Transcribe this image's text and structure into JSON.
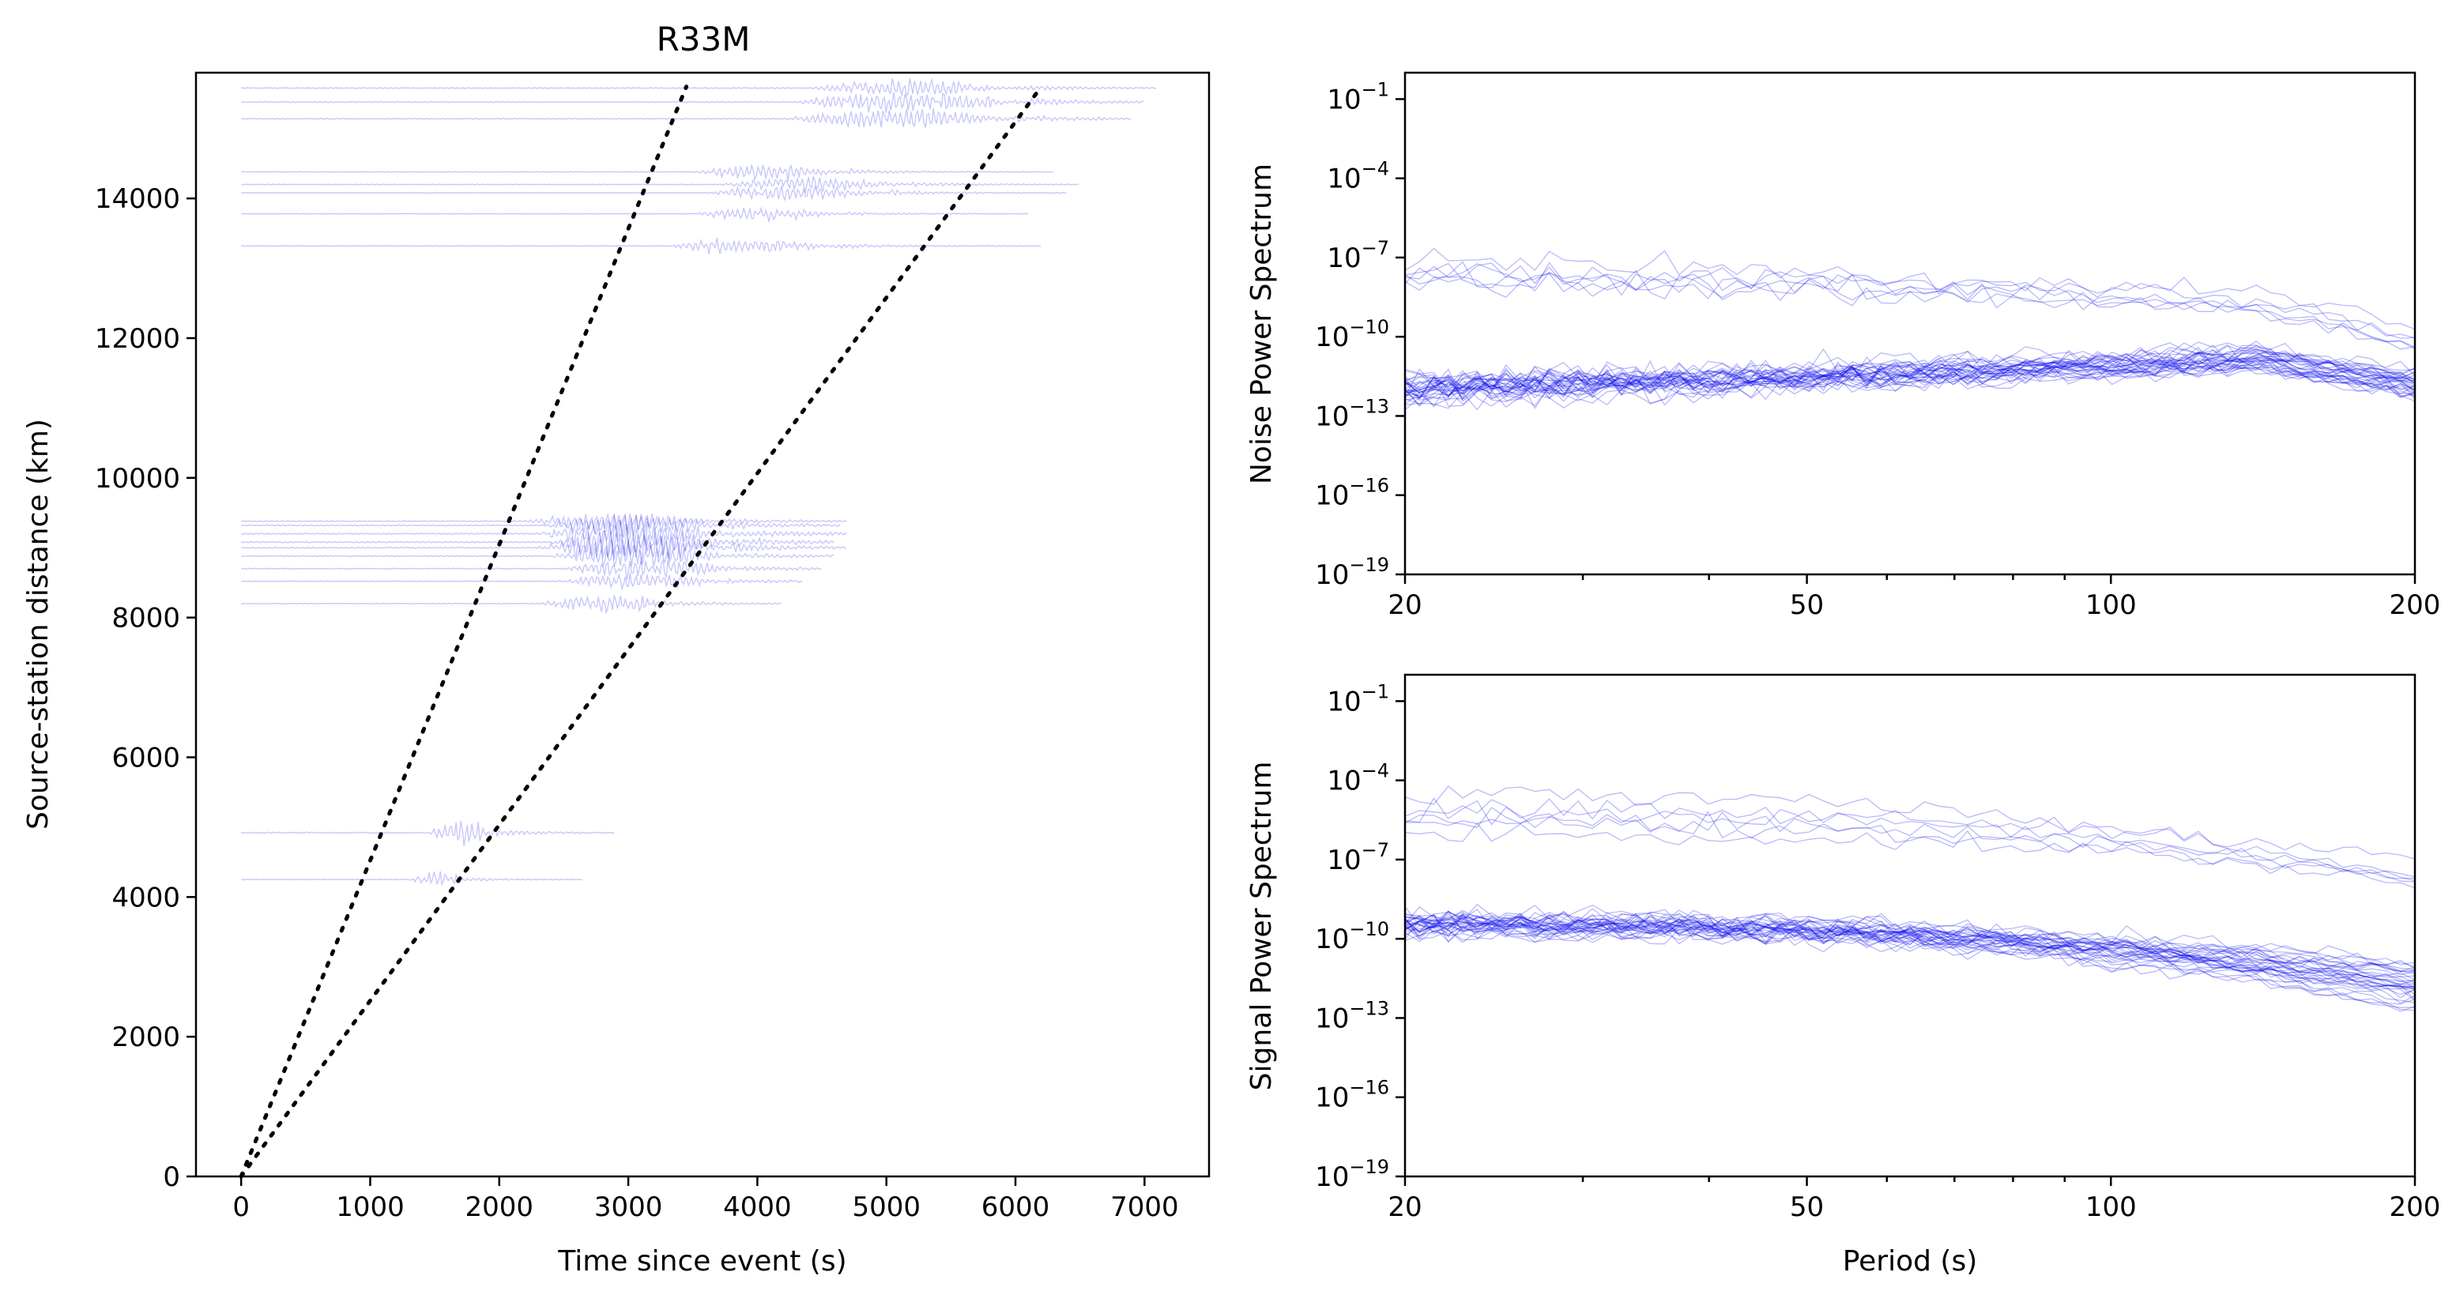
{
  "chart_data": [
    {
      "id": "record-section",
      "type": "line",
      "title": "R33M",
      "xlabel": "Time since event (s)",
      "ylabel": "Source-station distance (km)",
      "xlim": [
        -350,
        7500
      ],
      "ylim": [
        0,
        15800
      ],
      "xticks": [
        0,
        1000,
        2000,
        3000,
        4000,
        5000,
        6000,
        7000
      ],
      "yticks": [
        0,
        2000,
        4000,
        6000,
        8000,
        10000,
        12000,
        14000
      ],
      "grid": false,
      "trace_color": "#0000ee",
      "traces": [
        {
          "distance": 4250,
          "t_start": 0,
          "t_end": 2650,
          "arrival": 1300,
          "duration": 500,
          "amp": 120
        },
        {
          "distance": 4920,
          "t_start": 0,
          "t_end": 2900,
          "arrival": 1450,
          "duration": 600,
          "amp": 230
        },
        {
          "distance": 8200,
          "t_start": 0,
          "t_end": 4200,
          "arrival": 2300,
          "duration": 1100,
          "amp": 160
        },
        {
          "distance": 8520,
          "t_start": 0,
          "t_end": 4350,
          "arrival": 2450,
          "duration": 1300,
          "amp": 150
        },
        {
          "distance": 8700,
          "t_start": 0,
          "t_end": 4500,
          "arrival": 2500,
          "duration": 1400,
          "amp": 180
        },
        {
          "distance": 8880,
          "t_start": 0,
          "t_end": 4600,
          "arrival": 2400,
          "duration": 1400,
          "amp": 220
        },
        {
          "distance": 9000,
          "t_start": 0,
          "t_end": 4700,
          "arrival": 2300,
          "duration": 1500,
          "amp": 260
        },
        {
          "distance": 9080,
          "t_start": 0,
          "t_end": 4600,
          "arrival": 2400,
          "duration": 1400,
          "amp": 280
        },
        {
          "distance": 9200,
          "t_start": 0,
          "t_end": 4700,
          "arrival": 2300,
          "duration": 1500,
          "amp": 260
        },
        {
          "distance": 9320,
          "t_start": 0,
          "t_end": 4650,
          "arrival": 2350,
          "duration": 1400,
          "amp": 220
        },
        {
          "distance": 9380,
          "t_start": 0,
          "t_end": 4700,
          "arrival": 2200,
          "duration": 1500,
          "amp": 160
        },
        {
          "distance": 13320,
          "t_start": 0,
          "t_end": 6200,
          "arrival": 3300,
          "duration": 1300,
          "amp": 140
        },
        {
          "distance": 13780,
          "t_start": 0,
          "t_end": 6100,
          "arrival": 3500,
          "duration": 1200,
          "amp": 110
        },
        {
          "distance": 14080,
          "t_start": 0,
          "t_end": 6400,
          "arrival": 3600,
          "duration": 1400,
          "amp": 140
        },
        {
          "distance": 14200,
          "t_start": 0,
          "t_end": 6500,
          "arrival": 3700,
          "duration": 1500,
          "amp": 130
        },
        {
          "distance": 14380,
          "t_start": 0,
          "t_end": 6300,
          "arrival": 3500,
          "duration": 1200,
          "amp": 150
        },
        {
          "distance": 15140,
          "t_start": 0,
          "t_end": 6900,
          "arrival": 4200,
          "duration": 1800,
          "amp": 180
        },
        {
          "distance": 15380,
          "t_start": 0,
          "t_end": 7000,
          "arrival": 4300,
          "duration": 1800,
          "amp": 200
        },
        {
          "distance": 15580,
          "t_start": 0,
          "t_end": 7100,
          "arrival": 4400,
          "duration": 1600,
          "amp": 160
        }
      ],
      "reference_lines": [
        {
          "points": [
            [
              0,
              0
            ],
            [
              3450,
              15600
            ]
          ]
        },
        {
          "points": [
            [
              0,
              0
            ],
            [
              6200,
              15600
            ]
          ]
        }
      ]
    },
    {
      "id": "noise-spectrum",
      "type": "line",
      "ylabel": "Noise Power Spectrum",
      "xlabel": "",
      "x_scale": "log",
      "y_scale": "log",
      "xlim": [
        20,
        200
      ],
      "ylim_exp": [
        -19,
        0
      ],
      "xticks": [
        20,
        50,
        100,
        200
      ],
      "yticks_exp": [
        -1,
        -4,
        -7,
        -10,
        -13,
        -16,
        -19
      ],
      "tick_base": "10",
      "grid": false,
      "line_color": "#0000ee",
      "n_curves": 40
    },
    {
      "id": "signal-spectrum",
      "type": "line",
      "ylabel": "Signal Power Spectrum",
      "xlabel": "Period (s)",
      "x_scale": "log",
      "y_scale": "log",
      "xlim": [
        20,
        200
      ],
      "ylim_exp": [
        -19,
        0
      ],
      "xticks": [
        20,
        50,
        100,
        200
      ],
      "yticks_exp": [
        -1,
        -4,
        -7,
        -10,
        -13,
        -16,
        -19
      ],
      "tick_base": "10",
      "grid": false,
      "line_color": "#0000ee",
      "n_curves": 40
    }
  ]
}
